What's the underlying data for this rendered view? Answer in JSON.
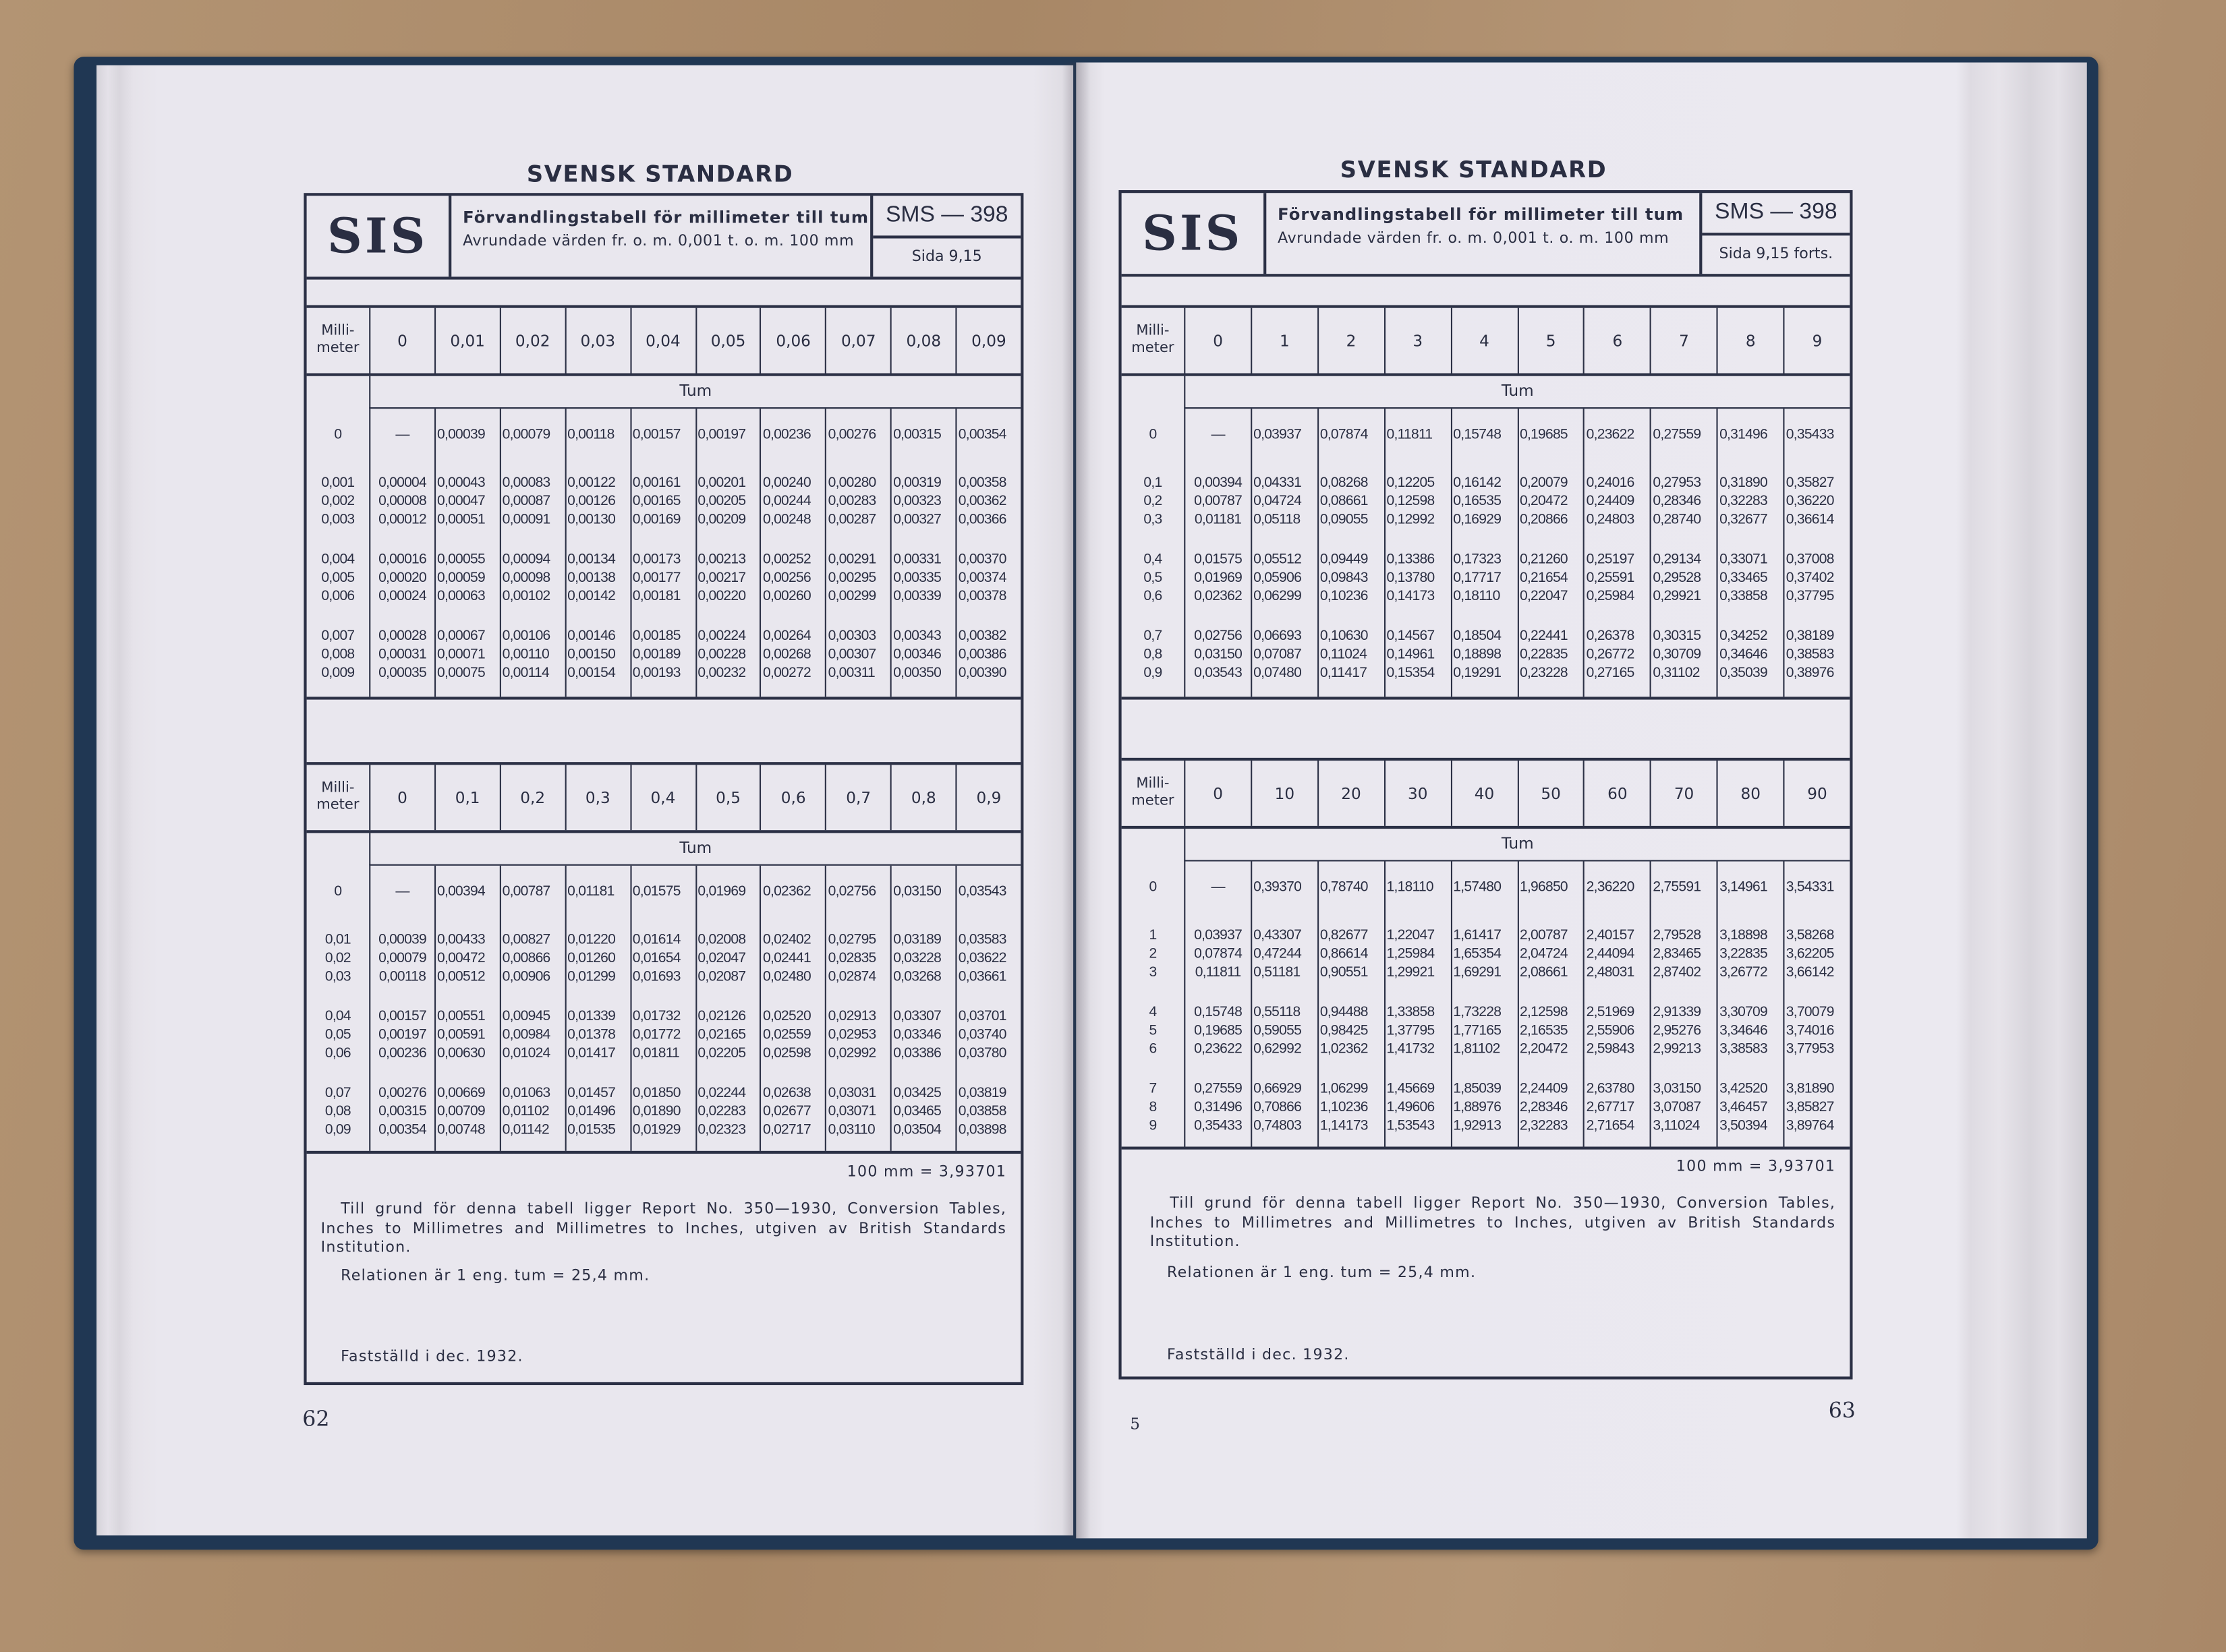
{
  "pages": [
    {
      "running_head": "SVENSK STANDARD",
      "logo": "SIS",
      "title": "Förvandlingstabell för millimeter till tum",
      "subtitle": "Avrundade värden fr. o. m. 0,001 t. o. m. 100 mm",
      "standard_no": "SMS — 398",
      "sheet": "Sida 9,15",
      "tables": [
        {
          "row_header": "Milli-\nmeter",
          "unit_label": "Tum",
          "columns": [
            "0",
            "0,01",
            "0,02",
            "0,03",
            "0,04",
            "0,05",
            "0,06",
            "0,07",
            "0,08",
            "0,09"
          ],
          "rows": [
            {
              "mm": "0",
              "values": [
                "—",
                "0,00039",
                "0,00079",
                "0,00118",
                "0,00157",
                "0,00197",
                "0,00236",
                "0,00276",
                "0,00315",
                "0,00354"
              ]
            },
            {
              "mm": "0,001",
              "values": [
                "0,00004",
                "0,00043",
                "0,00083",
                "0,00122",
                "0,00161",
                "0,00201",
                "0,00240",
                "0,00280",
                "0,00319",
                "0,00358"
              ]
            },
            {
              "mm": "0,002",
              "values": [
                "0,00008",
                "0,00047",
                "0,00087",
                "0,00126",
                "0,00165",
                "0,00205",
                "0,00244",
                "0,00283",
                "0,00323",
                "0,00362"
              ]
            },
            {
              "mm": "0,003",
              "values": [
                "0,00012",
                "0,00051",
                "0,00091",
                "0,00130",
                "0,00169",
                "0,00209",
                "0,00248",
                "0,00287",
                "0,00327",
                "0,00366"
              ]
            },
            {
              "mm": "0,004",
              "values": [
                "0,00016",
                "0,00055",
                "0,00094",
                "0,00134",
                "0,00173",
                "0,00213",
                "0,00252",
                "0,00291",
                "0,00331",
                "0,00370"
              ]
            },
            {
              "mm": "0,005",
              "values": [
                "0,00020",
                "0,00059",
                "0,00098",
                "0,00138",
                "0,00177",
                "0,00217",
                "0,00256",
                "0,00295",
                "0,00335",
                "0,00374"
              ]
            },
            {
              "mm": "0,006",
              "values": [
                "0,00024",
                "0,00063",
                "0,00102",
                "0,00142",
                "0,00181",
                "0,00220",
                "0,00260",
                "0,00299",
                "0,00339",
                "0,00378"
              ]
            },
            {
              "mm": "0,007",
              "values": [
                "0,00028",
                "0,00067",
                "0,00106",
                "0,00146",
                "0,00185",
                "0,00224",
                "0,00264",
                "0,00303",
                "0,00343",
                "0,00382"
              ]
            },
            {
              "mm": "0,008",
              "values": [
                "0,00031",
                "0,00071",
                "0,00110",
                "0,00150",
                "0,00189",
                "0,00228",
                "0,00268",
                "0,00307",
                "0,00346",
                "0,00386"
              ]
            },
            {
              "mm": "0,009",
              "values": [
                "0,00035",
                "0,00075",
                "0,00114",
                "0,00154",
                "0,00193",
                "0,00232",
                "0,00272",
                "0,00311",
                "0,00350",
                "0,00390"
              ]
            }
          ]
        },
        {
          "row_header": "Milli-\nmeter",
          "unit_label": "Tum",
          "columns": [
            "0",
            "0,1",
            "0,2",
            "0,3",
            "0,4",
            "0,5",
            "0,6",
            "0,7",
            "0,8",
            "0,9"
          ],
          "rows": [
            {
              "mm": "0",
              "values": [
                "—",
                "0,00394",
                "0,00787",
                "0,01181",
                "0,01575",
                "0,01969",
                "0,02362",
                "0,02756",
                "0,03150",
                "0,03543"
              ]
            },
            {
              "mm": "0,01",
              "values": [
                "0,00039",
                "0,00433",
                "0,00827",
                "0,01220",
                "0,01614",
                "0,02008",
                "0,02402",
                "0,02795",
                "0,03189",
                "0,03583"
              ]
            },
            {
              "mm": "0,02",
              "values": [
                "0,00079",
                "0,00472",
                "0,00866",
                "0,01260",
                "0,01654",
                "0,02047",
                "0,02441",
                "0,02835",
                "0,03228",
                "0,03622"
              ]
            },
            {
              "mm": "0,03",
              "values": [
                "0,00118",
                "0,00512",
                "0,00906",
                "0,01299",
                "0,01693",
                "0,02087",
                "0,02480",
                "0,02874",
                "0,03268",
                "0,03661"
              ]
            },
            {
              "mm": "0,04",
              "values": [
                "0,00157",
                "0,00551",
                "0,00945",
                "0,01339",
                "0,01732",
                "0,02126",
                "0,02520",
                "0,02913",
                "0,03307",
                "0,03701"
              ]
            },
            {
              "mm": "0,05",
              "values": [
                "0,00197",
                "0,00591",
                "0,00984",
                "0,01378",
                "0,01772",
                "0,02165",
                "0,02559",
                "0,02953",
                "0,03346",
                "0,03740"
              ]
            },
            {
              "mm": "0,06",
              "values": [
                "0,00236",
                "0,00630",
                "0,01024",
                "0,01417",
                "0,01811",
                "0,02205",
                "0,02598",
                "0,02992",
                "0,03386",
                "0,03780"
              ]
            },
            {
              "mm": "0,07",
              "values": [
                "0,00276",
                "0,00669",
                "0,01063",
                "0,01457",
                "0,01850",
                "0,02244",
                "0,02638",
                "0,03031",
                "0,03425",
                "0,03819"
              ]
            },
            {
              "mm": "0,08",
              "values": [
                "0,00315",
                "0,00709",
                "0,01102",
                "0,01496",
                "0,01890",
                "0,02283",
                "0,02677",
                "0,03071",
                "0,03465",
                "0,03858"
              ]
            },
            {
              "mm": "0,09",
              "values": [
                "0,00354",
                "0,00748",
                "0,01142",
                "0,01535",
                "0,01929",
                "0,02323",
                "0,02717",
                "0,03110",
                "0,03504",
                "0,03898"
              ]
            }
          ]
        }
      ],
      "note_total": "100 mm = 3,93701",
      "note_basis": "Till grund för denna tabell ligger Report No. 350—1930, Conversion Tables, Inches to Millimetres and Millimetres to Inches, utgiven av British Standards Institution.",
      "note_relation": "Relationen är 1 eng. tum = 25,4 mm.",
      "established": "Fastställd i dec. 1932.",
      "page_number": "62"
    },
    {
      "running_head": "SVENSK STANDARD",
      "logo": "SIS",
      "title": "Förvandlingstabell för millimeter till tum",
      "subtitle": "Avrundade värden fr. o. m. 0,001 t. o. m. 100 mm",
      "standard_no": "SMS — 398",
      "sheet": "Sida 9,15 forts.",
      "tables": [
        {
          "row_header": "Milli-\nmeter",
          "unit_label": "Tum",
          "columns": [
            "0",
            "1",
            "2",
            "3",
            "4",
            "5",
            "6",
            "7",
            "8",
            "9"
          ],
          "rows": [
            {
              "mm": "0",
              "values": [
                "—",
                "0,03937",
                "0,07874",
                "0,11811",
                "0,15748",
                "0,19685",
                "0,23622",
                "0,27559",
                "0,31496",
                "0,35433"
              ]
            },
            {
              "mm": "0,1",
              "values": [
                "0,00394",
                "0,04331",
                "0,08268",
                "0,12205",
                "0,16142",
                "0,20079",
                "0,24016",
                "0,27953",
                "0,31890",
                "0,35827"
              ]
            },
            {
              "mm": "0,2",
              "values": [
                "0,00787",
                "0,04724",
                "0,08661",
                "0,12598",
                "0,16535",
                "0,20472",
                "0,24409",
                "0,28346",
                "0,32283",
                "0,36220"
              ]
            },
            {
              "mm": "0,3",
              "values": [
                "0,01181",
                "0,05118",
                "0,09055",
                "0,12992",
                "0,16929",
                "0,20866",
                "0,24803",
                "0,28740",
                "0,32677",
                "0,36614"
              ]
            },
            {
              "mm": "0,4",
              "values": [
                "0,01575",
                "0,05512",
                "0,09449",
                "0,13386",
                "0,17323",
                "0,21260",
                "0,25197",
                "0,29134",
                "0,33071",
                "0,37008"
              ]
            },
            {
              "mm": "0,5",
              "values": [
                "0,01969",
                "0,05906",
                "0,09843",
                "0,13780",
                "0,17717",
                "0,21654",
                "0,25591",
                "0,29528",
                "0,33465",
                "0,37402"
              ]
            },
            {
              "mm": "0,6",
              "values": [
                "0,02362",
                "0,06299",
                "0,10236",
                "0,14173",
                "0,18110",
                "0,22047",
                "0,25984",
                "0,29921",
                "0,33858",
                "0,37795"
              ]
            },
            {
              "mm": "0,7",
              "values": [
                "0,02756",
                "0,06693",
                "0,10630",
                "0,14567",
                "0,18504",
                "0,22441",
                "0,26378",
                "0,30315",
                "0,34252",
                "0,38189"
              ]
            },
            {
              "mm": "0,8",
              "values": [
                "0,03150",
                "0,07087",
                "0,11024",
                "0,14961",
                "0,18898",
                "0,22835",
                "0,26772",
                "0,30709",
                "0,34646",
                "0,38583"
              ]
            },
            {
              "mm": "0,9",
              "values": [
                "0,03543",
                "0,07480",
                "0,11417",
                "0,15354",
                "0,19291",
                "0,23228",
                "0,27165",
                "0,31102",
                "0,35039",
                "0,38976"
              ]
            }
          ]
        },
        {
          "row_header": "Milli-\nmeter",
          "unit_label": "Tum",
          "columns": [
            "0",
            "10",
            "20",
            "30",
            "40",
            "50",
            "60",
            "70",
            "80",
            "90"
          ],
          "rows": [
            {
              "mm": "0",
              "values": [
                "—",
                "0,39370",
                "0,78740",
                "1,18110",
                "1,57480",
                "1,96850",
                "2,36220",
                "2,75591",
                "3,14961",
                "3,54331"
              ]
            },
            {
              "mm": "1",
              "values": [
                "0,03937",
                "0,43307",
                "0,82677",
                "1,22047",
                "1,61417",
                "2,00787",
                "2,40157",
                "2,79528",
                "3,18898",
                "3,58268"
              ]
            },
            {
              "mm": "2",
              "values": [
                "0,07874",
                "0,47244",
                "0,86614",
                "1,25984",
                "1,65354",
                "2,04724",
                "2,44094",
                "2,83465",
                "3,22835",
                "3,62205"
              ]
            },
            {
              "mm": "3",
              "values": [
                "0,11811",
                "0,51181",
                "0,90551",
                "1,29921",
                "1,69291",
                "2,08661",
                "2,48031",
                "2,87402",
                "3,26772",
                "3,66142"
              ]
            },
            {
              "mm": "4",
              "values": [
                "0,15748",
                "0,55118",
                "0,94488",
                "1,33858",
                "1,73228",
                "2,12598",
                "2,51969",
                "2,91339",
                "3,30709",
                "3,70079"
              ]
            },
            {
              "mm": "5",
              "values": [
                "0,19685",
                "0,59055",
                "0,98425",
                "1,37795",
                "1,77165",
                "2,16535",
                "2,55906",
                "2,95276",
                "3,34646",
                "3,74016"
              ]
            },
            {
              "mm": "6",
              "values": [
                "0,23622",
                "0,62992",
                "1,02362",
                "1,41732",
                "1,81102",
                "2,20472",
                "2,59843",
                "2,99213",
                "3,38583",
                "3,77953"
              ]
            },
            {
              "mm": "7",
              "values": [
                "0,27559",
                "0,66929",
                "1,06299",
                "1,45669",
                "1,85039",
                "2,24409",
                "2,63780",
                "3,03150",
                "3,42520",
                "3,81890"
              ]
            },
            {
              "mm": "8",
              "values": [
                "0,31496",
                "0,70866",
                "1,10236",
                "1,49606",
                "1,88976",
                "2,28346",
                "2,67717",
                "3,07087",
                "3,46457",
                "3,85827"
              ]
            },
            {
              "mm": "9",
              "values": [
                "0,35433",
                "0,74803",
                "1,14173",
                "1,53543",
                "1,92913",
                "2,32283",
                "2,71654",
                "3,11024",
                "3,50394",
                "3,89764"
              ]
            }
          ]
        }
      ],
      "note_total": "100 mm = 3,93701",
      "note_basis": "Till grund för denna tabell ligger Report No. 350—1930, Conversion Tables, Inches to Millimetres and Millimetres to Inches, utgiven av British Standards Institution.",
      "note_relation": "Relationen är 1 eng. tum = 25,4 mm.",
      "established": "Fastställd i dec. 1932.",
      "page_number": "63",
      "signature_mark": "5"
    }
  ]
}
